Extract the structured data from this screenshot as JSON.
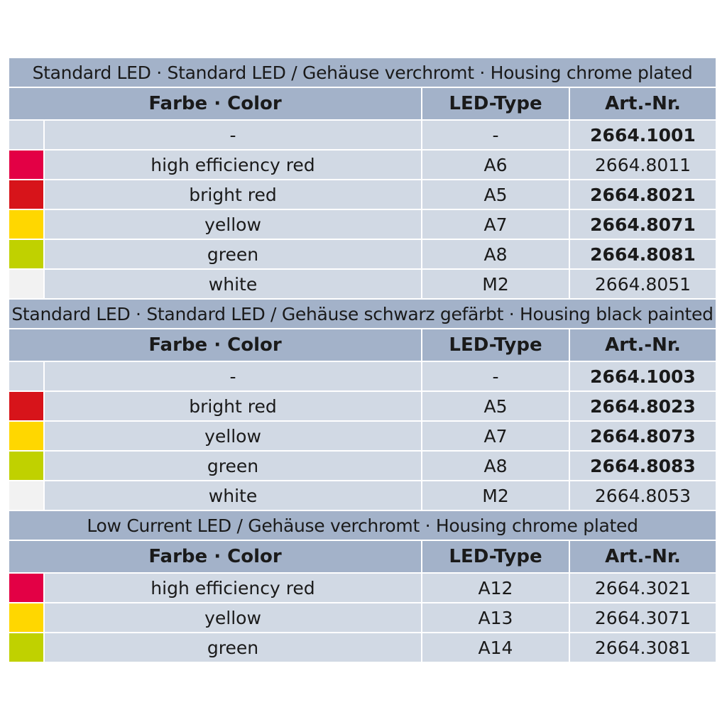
{
  "columns": {
    "color": "Farbe · Color",
    "led_type": "LED-Type",
    "art_nr": "Art.-Nr."
  },
  "swatch_colors": {
    "high efficiency red": "#e30045",
    "bright red": "#d7141a",
    "yellow": "#ffd700",
    "green": "#c0d100",
    "white": "#f2f2f2",
    "none": "#d1d9e4"
  },
  "sections": [
    {
      "title": "Standard LED · Standard LED / Gehäuse verchromt · Housing chrome plated",
      "rows": [
        {
          "swatch": "#d1d9e4",
          "color": "-",
          "led": "-",
          "art": "2664.1001",
          "bold": true
        },
        {
          "swatch": "#e30045",
          "color": "high efficiency red",
          "led": "A6",
          "art": "2664.8011",
          "bold": false
        },
        {
          "swatch": "#d7141a",
          "color": "bright red",
          "led": "A5",
          "art": "2664.8021",
          "bold": true
        },
        {
          "swatch": "#ffd700",
          "color": "yellow",
          "led": "A7",
          "art": "2664.8071",
          "bold": true
        },
        {
          "swatch": "#c0d100",
          "color": "green",
          "led": "A8",
          "art": "2664.8081",
          "bold": true
        },
        {
          "swatch": "#f2f2f2",
          "color": "white",
          "led": "M2",
          "art": "2664.8051",
          "bold": false
        }
      ]
    },
    {
      "title": "Standard LED · Standard LED / Gehäuse schwarz gefärbt · Housing black painted",
      "rows": [
        {
          "swatch": "#d1d9e4",
          "color": "-",
          "led": "-",
          "art": "2664.1003",
          "bold": true
        },
        {
          "swatch": "#d7141a",
          "color": "bright red",
          "led": "A5",
          "art": "2664.8023",
          "bold": true
        },
        {
          "swatch": "#ffd700",
          "color": "yellow",
          "led": "A7",
          "art": "2664.8073",
          "bold": true
        },
        {
          "swatch": "#c0d100",
          "color": "green",
          "led": "A8",
          "art": "2664.8083",
          "bold": true
        },
        {
          "swatch": "#f2f2f2",
          "color": "white",
          "led": "M2",
          "art": "2664.8053",
          "bold": false
        }
      ]
    },
    {
      "title": "Low Current LED / Gehäuse verchromt · Housing chrome plated",
      "rows": [
        {
          "swatch": "#e30045",
          "color": "high efficiency red",
          "led": "A12",
          "art": "2664.3021",
          "bold": false
        },
        {
          "swatch": "#ffd700",
          "color": "yellow",
          "led": "A13",
          "art": "2664.3071",
          "bold": false
        },
        {
          "swatch": "#c0d100",
          "color": "green",
          "led": "A14",
          "art": "2664.3081",
          "bold": false
        }
      ]
    }
  ]
}
